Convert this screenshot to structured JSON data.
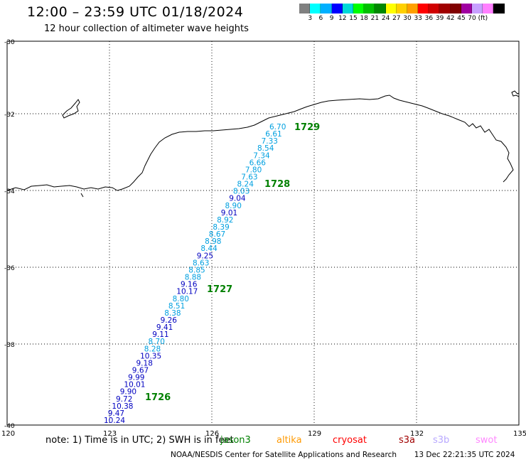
{
  "header": {
    "title": "12:00 – 23:59 UTC 01/18/2024",
    "subtitle": "12 hour collection of altimeter wave heights"
  },
  "colorbar": {
    "colors": [
      "#808080",
      "#00ffff",
      "#00b0ff",
      "#0000ff",
      "#00d8d8",
      "#00ff00",
      "#00c000",
      "#008800",
      "#ffff00",
      "#ffd000",
      "#ffa000",
      "#ff0000",
      "#d00000",
      "#a00000",
      "#800000",
      "#a000a0",
      "#c8a0ff",
      "#ff80ff",
      "#000000"
    ],
    "labels": [
      "3",
      "6",
      "9",
      "12",
      "15",
      "18",
      "21",
      "24",
      "27",
      "30",
      "33",
      "36",
      "39",
      "42",
      "45",
      "70 (ft)"
    ]
  },
  "axes": {
    "lat_labels": [
      "-30",
      "-32",
      "-34",
      "-36",
      "-38",
      "-40"
    ],
    "lon_labels": [
      "120",
      "123",
      "126",
      "129",
      "132",
      "135"
    ]
  },
  "track": {
    "heights": [
      "6.70",
      "6.61",
      "7.33",
      "8.54",
      "7.34",
      "6.66",
      "7.80",
      "7.63",
      "8.24",
      "8.03",
      "9.04",
      "8.90",
      "9.01",
      "8.92",
      "8.39",
      "8.67",
      "8.98",
      "8.44",
      "9.25",
      "8.63",
      "8.85",
      "8.88",
      "9.16",
      "10.17",
      "8.80",
      "8.51",
      "8.38",
      "9.26",
      "9.41",
      "9.11",
      "8.70",
      "8.28",
      "10.35",
      "9.18",
      "9.67",
      "9.99",
      "10.01",
      "9.90",
      "9.72",
      "10.38",
      "9.47",
      "10.24"
    ],
    "colors": [
      "#00a0e0",
      "#00a0e0",
      "#00a0e0",
      "#00a0e0",
      "#00a0e0",
      "#00a0e0",
      "#00a0e0",
      "#00a0e0",
      "#00a0e0",
      "#00a0e0",
      "#0000c0",
      "#00a0e0",
      "#0000c0",
      "#00a0e0",
      "#00a0e0",
      "#00a0e0",
      "#00a0e0",
      "#00a0e0",
      "#0000c0",
      "#00a0e0",
      "#00a0e0",
      "#00a0e0",
      "#0000c0",
      "#0000c0",
      "#00a0e0",
      "#00a0e0",
      "#00a0e0",
      "#0000c0",
      "#0000c0",
      "#0000c0",
      "#00a0e0",
      "#00a0e0",
      "#0000c0",
      "#0000c0",
      "#0000c0",
      "#0000c0",
      "#0000c0",
      "#0000c0",
      "#0000c0",
      "#0000c0",
      "#0000c0",
      "#0000c0"
    ],
    "orbit_labels": [
      "1729",
      "1728",
      "1727",
      "1726"
    ]
  },
  "note": {
    "text": "note: 1) Time is in UTC; 2) SWH is in feet",
    "satellites": [
      {
        "name": "jason3",
        "color": "#008000"
      },
      {
        "name": "altika",
        "color": "#ff9900"
      },
      {
        "name": "cryosat",
        "color": "#ff0000"
      },
      {
        "name": "s3a",
        "color": "#a00000"
      },
      {
        "name": "s3b",
        "color": "#b8a8ff"
      },
      {
        "name": "swot",
        "color": "#ff88ff"
      }
    ]
  },
  "footer": {
    "credit": "NOAA/NESDIS Center for Satellite Applications and Research",
    "timestamp": "13 Dec 22:21:35 UTC 2024"
  }
}
